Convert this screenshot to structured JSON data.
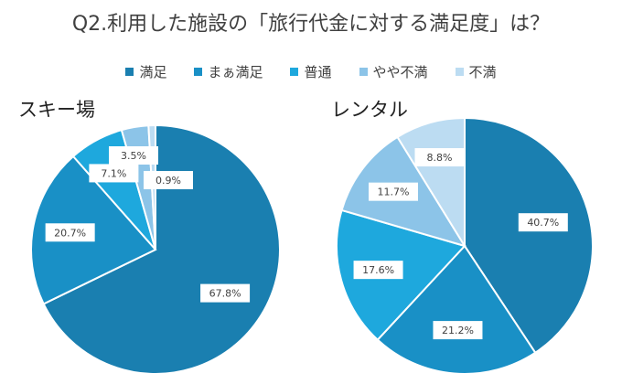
{
  "title": "Q2.利用した施設の「旅行代金に対する満足度」は？",
  "legend": [
    {
      "label": "満足",
      "color": "#1a7fb0"
    },
    {
      "label": "まぁ満足",
      "color": "#1990c6"
    },
    {
      "label": "普通",
      "color": "#1ea8dd"
    },
    {
      "label": "やや不満",
      "color": "#8cc4e8"
    },
    {
      "label": "不満",
      "color": "#bcdcf2"
    }
  ],
  "chart_data": [
    {
      "type": "pie",
      "title": "スキー場",
      "categories": [
        "満足",
        "まぁ満足",
        "普通",
        "やや不満",
        "不満"
      ],
      "values": [
        67.8,
        20.7,
        7.1,
        3.5,
        0.9
      ],
      "labels": [
        "67.8%",
        "20.7%",
        "7.1%",
        "3.5%",
        "0.9%"
      ]
    },
    {
      "type": "pie",
      "title": "レンタル",
      "categories": [
        "満足",
        "まぁ満足",
        "普通",
        "やや不満",
        "不満"
      ],
      "values": [
        40.7,
        21.2,
        17.6,
        11.7,
        8.8
      ],
      "labels": [
        "40.7%",
        "21.2%",
        "17.6%",
        "11.7%",
        "8.8%"
      ]
    }
  ]
}
